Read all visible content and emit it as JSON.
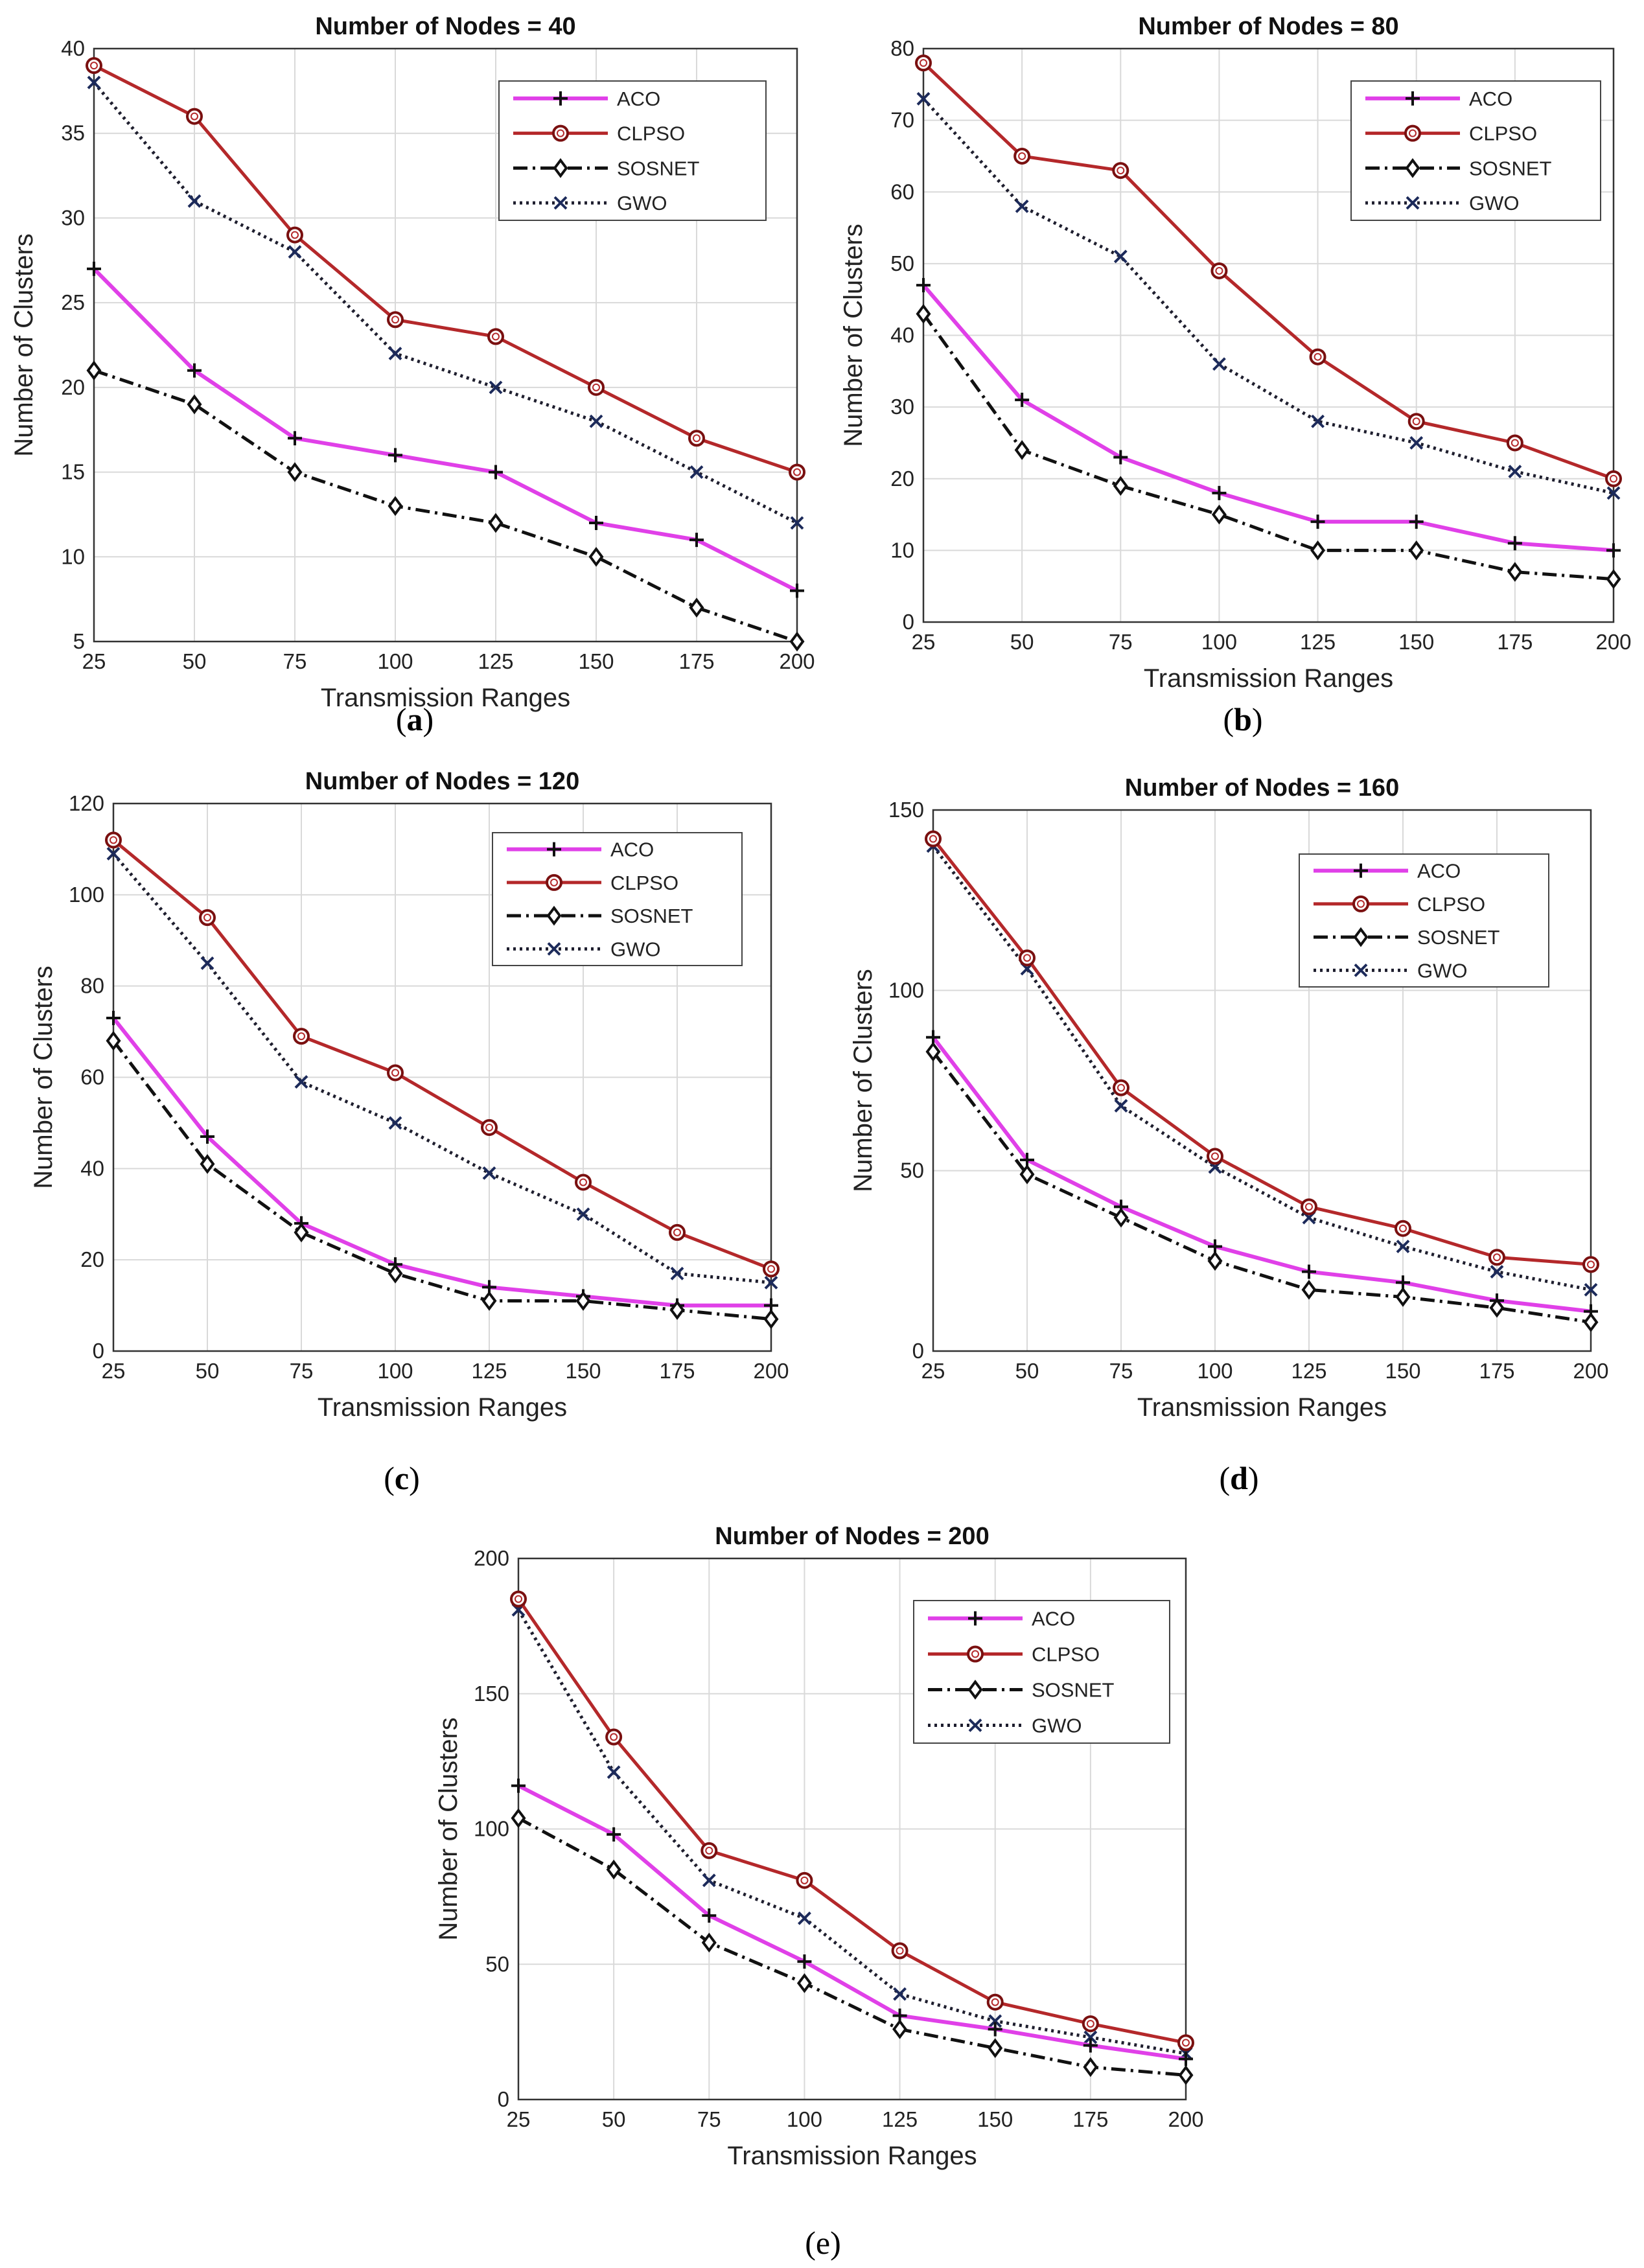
{
  "figure": {
    "series_colors": {
      "ACO": "#e040e8",
      "CLPSO": "#b4282a",
      "SOSNET": "#111111",
      "GWO": "#1e1e2e"
    },
    "caption_a": {
      "open": "(",
      "letter": "a",
      "close": ")"
    },
    "caption_b": {
      "open": "(",
      "letter": "b",
      "close": ")"
    },
    "caption_c": {
      "open": "(",
      "letter": "c",
      "close": ")"
    },
    "caption_d": {
      "open": "(",
      "letter": "d",
      "close": ")"
    },
    "caption_e": {
      "text": "(e)"
    }
  },
  "chart_data": [
    {
      "type": "line",
      "title": "Number of Nodes = 40",
      "xlabel": "Transmission Ranges",
      "ylabel": "Number of Clusters",
      "categories": [
        "25",
        "50",
        "75",
        "100",
        "125",
        "150",
        "175",
        "200"
      ],
      "ylim": [
        5,
        40
      ],
      "yticks": [
        5,
        10,
        15,
        20,
        25,
        30,
        35,
        40
      ],
      "grid": true,
      "legend_position": "top-right",
      "series": [
        {
          "name": "ACO",
          "values": [
            27,
            21,
            17,
            16,
            15,
            12,
            11,
            8
          ]
        },
        {
          "name": "CLPSO",
          "values": [
            39,
            36,
            29,
            24,
            23,
            20,
            17,
            15
          ]
        },
        {
          "name": "SOSNET",
          "values": [
            21,
            19,
            15,
            13,
            12,
            10,
            7,
            5
          ]
        },
        {
          "name": "GWO",
          "values": [
            38,
            31,
            28,
            22,
            20,
            18,
            15,
            12
          ]
        }
      ]
    },
    {
      "type": "line",
      "title": "Number of Nodes = 80",
      "xlabel": "Transmission Ranges",
      "ylabel": "Number of Clusters",
      "categories": [
        "25",
        "50",
        "75",
        "100",
        "125",
        "150",
        "175",
        "200"
      ],
      "ylim": [
        0,
        80
      ],
      "yticks": [
        0,
        10,
        20,
        30,
        40,
        50,
        60,
        70,
        80
      ],
      "grid": true,
      "legend_position": "top-right",
      "series": [
        {
          "name": "ACO",
          "values": [
            47,
            31,
            23,
            18,
            14,
            14,
            11,
            10
          ]
        },
        {
          "name": "CLPSO",
          "values": [
            78,
            65,
            63,
            49,
            37,
            28,
            25,
            20
          ]
        },
        {
          "name": "SOSNET",
          "values": [
            43,
            24,
            19,
            15,
            10,
            10,
            7,
            6
          ]
        },
        {
          "name": "GWO",
          "values": [
            73,
            58,
            51,
            36,
            28,
            25,
            21,
            18
          ]
        }
      ]
    },
    {
      "type": "line",
      "title": "Number of Nodes = 120",
      "xlabel": "Transmission Ranges",
      "ylabel": "Number of Clusters",
      "categories": [
        "25",
        "50",
        "75",
        "100",
        "125",
        "150",
        "175",
        "200"
      ],
      "ylim": [
        0,
        120
      ],
      "yticks": [
        0,
        20,
        40,
        60,
        80,
        100,
        120
      ],
      "grid": true,
      "legend_position": "top-right",
      "series": [
        {
          "name": "ACO",
          "values": [
            73,
            47,
            28,
            19,
            14,
            12,
            10,
            10
          ]
        },
        {
          "name": "CLPSO",
          "values": [
            112,
            95,
            69,
            61,
            49,
            37,
            26,
            18
          ]
        },
        {
          "name": "SOSNET",
          "values": [
            68,
            41,
            26,
            17,
            11,
            11,
            9,
            7
          ]
        },
        {
          "name": "GWO",
          "values": [
            109,
            85,
            59,
            50,
            39,
            30,
            17,
            15
          ]
        }
      ]
    },
    {
      "type": "line",
      "title": "Number of Nodes = 160",
      "xlabel": "Transmission Ranges",
      "ylabel": "Number of Clusters",
      "categories": [
        "25",
        "50",
        "75",
        "100",
        "125",
        "150",
        "175",
        "200"
      ],
      "ylim": [
        0,
        150
      ],
      "yticks": [
        0,
        50,
        100,
        150
      ],
      "grid": true,
      "legend_position": "top-right",
      "series": [
        {
          "name": "ACO",
          "values": [
            87,
            53,
            40,
            29,
            22,
            19,
            14,
            11
          ]
        },
        {
          "name": "CLPSO",
          "values": [
            142,
            109,
            73,
            54,
            40,
            34,
            26,
            24
          ]
        },
        {
          "name": "SOSNET",
          "values": [
            83,
            49,
            37,
            25,
            17,
            15,
            12,
            8
          ]
        },
        {
          "name": "GWO",
          "values": [
            140,
            106,
            68,
            51,
            37,
            29,
            22,
            17
          ]
        }
      ]
    },
    {
      "type": "line",
      "title": "Number of Nodes = 200",
      "xlabel": "Transmission Ranges",
      "ylabel": "Number of Clusters",
      "categories": [
        "25",
        "50",
        "75",
        "100",
        "125",
        "150",
        "175",
        "200"
      ],
      "ylim": [
        0,
        200
      ],
      "yticks": [
        0,
        50,
        100,
        150,
        200
      ],
      "grid": true,
      "legend_position": "top-right",
      "series": [
        {
          "name": "ACO",
          "values": [
            116,
            98,
            68,
            51,
            31,
            26,
            20,
            15
          ]
        },
        {
          "name": "CLPSO",
          "values": [
            185,
            134,
            92,
            81,
            55,
            36,
            28,
            21
          ]
        },
        {
          "name": "SOSNET",
          "values": [
            104,
            85,
            58,
            43,
            26,
            19,
            12,
            9
          ]
        },
        {
          "name": "GWO",
          "values": [
            181,
            121,
            81,
            67,
            39,
            29,
            23,
            17
          ]
        }
      ]
    }
  ]
}
